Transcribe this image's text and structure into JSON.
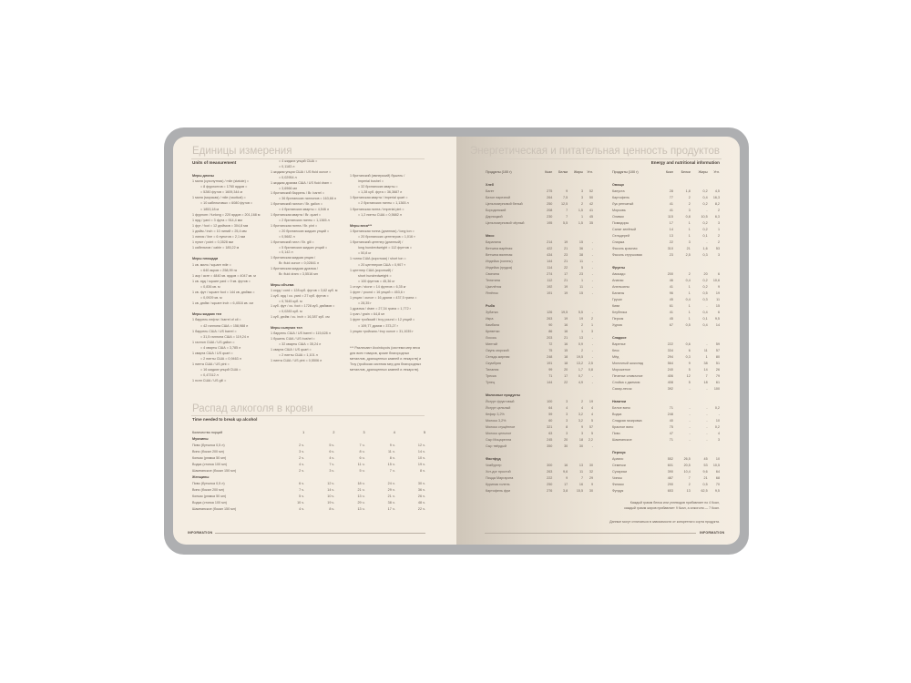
{
  "left_page": {
    "units_title": "Единицы измерения",
    "units_subtitle": "Units of measurement",
    "units_columns": [
      [
        {
          "h": "Меры длины"
        },
        "1 миля (сухопутная) / mile (statute) =",
        {
          "i": "= 8 фурлонгов = 1760 ярдов ="
        },
        {
          "i": "= 5280 футов = 1609,344 м"
        },
        "1 миля (морская) / mile (nautical) =",
        {
          "i": "= 10 кабельтовых = 6080 футов ="
        },
        {
          "i": "= 1853,18 м"
        },
        "1 фурлонг / furlong = 220 ярдов = 201,168 м",
        "1 ярд / yard = 3 фута = 914,4 мм",
        "1 фут / foot = 12 дюймов = 304,8 мм",
        "1 дюйм / inch = 10 линий = 25,4 мм",
        "1 линия / line = 6 пунктов = 2,1 мм",
        "1 пункт / point = 0,3528 мм",
        "1 кабельтов / cable = 185,22 м",
        "",
        {
          "h": "Меры площади"
        },
        "1 кв. миля / square mile =",
        {
          "i": "= 640 акров = 258,99 га"
        },
        "1 акр / acre = 4840 кв. ярдов = 4047 кв. м",
        "1 кв. ярд / square yard = 9 кв. футов =",
        {
          "i": "= 0,836 кв. м"
        },
        "1 кв. фут / square foot = 144 кв. дюйма =",
        {
          "i": "= 0,0929 кв. м"
        },
        "1 кв. дюйм / square inch = 6,4516 кв. см",
        "",
        {
          "h": "Меры жидких тел"
        },
        "1 баррель нефти / barrel of oil =",
        {
          "i": "= 42 галлона США = 158,988 л"
        },
        "1 баррель США / US barrel =",
        {
          "i": "= 31,5 галлона США = 119,24 л"
        },
        "1 галлон США / US gallon =",
        {
          "i": "= 4 кварты США = 3,785 л"
        },
        "1 кварта США / US quart =",
        {
          "i": "= 2 пинты США = 0,9463 л"
        },
        "1 пинта США / US pint =",
        {
          "i": "= 16 жидких унций США ="
        },
        {
          "i": "= 0,47312 л"
        },
        "1 гилл США / US gill ="
      ],
      [
        {
          "i": "= 4 жидких унций США ="
        },
        {
          "i": "= 0,1183 л"
        },
        "1 жидкая унция США / US fluid ounce =",
        {
          "i": "= 0,02954 л"
        },
        "1 жидкая драхма США / US fluid dram =",
        {
          "i": "= 3,6966 мл"
        },
        "1 британский баррель / Br. barrel =",
        {
          "i": "= 36 британских галлонов = 163,66 л"
        },
        "1 британский галлон / Br. gallon =",
        {
          "i": "= 4 британских кварты = 4,546 л"
        },
        "1 британская кварта / Br. quart =",
        {
          "i": "= 2 британских пинты = 1,1365 л"
        },
        "1 британская пинта / Br. pint =",
        {
          "i": "= 20 британских жидких унций ="
        },
        {
          "i": "= 0,5682 л"
        },
        "1 британский гилл / Br. gill =",
        {
          "i": "= 5 британских жидких унций ="
        },
        {
          "i": "= 0,142 л"
        },
        "1 британская жидкая унция /",
        {
          "i": "Br. fluid ounce = 0,02841 л"
        },
        "1 британская жидкая драхма /",
        {
          "i": "Br. fluid dram = 3,5516 мл"
        },
        "",
        {
          "h": "Меры объема"
        },
        "1 корд / cord = 128 куб. футов = 3,62 куб. м",
        "1 куб. ярд / cu. yard = 27 куб. футов =",
        {
          "i": "= 0,7645 куб. м"
        },
        "1 куб. фут / cu. foot = 1728 куб. дюймов =",
        {
          "i": "= 0,0283 куб. м"
        },
        "1 куб. дюйм / cu. inch = 16,387 куб. см",
        "",
        {
          "h": "Меры сыпучих тел"
        },
        "1 баррель США / US barrel = 115,628 л",
        "1 бушель США / US bushel =",
        {
          "i": "= 32 кварты США = 35,24 л"
        },
        "1 кварта США / US quart =",
        {
          "i": "= 2 пинты США = 1,101 л"
        },
        "1 пинта США / US pint = 0,5506 л"
      ],
      [
        "1 британский (имперский) бушель /",
        {
          "i": "imperial bushel ="
        },
        {
          "i": "= 32 британских кварты ="
        },
        {
          "i": "= 1,28 куб. фута = 36,3687 л"
        },
        "1 британская кварта / imperial quart =",
        {
          "i": "= 2 британских пинты = 1,1365 л"
        },
        "1 британская пинта / imperial pint =",
        {
          "i": "= 1,2 пинты США = 0,5682 л"
        },
        "",
        {
          "h": "Меры веса***"
        },
        "1 британская тонна (длинная) / long ton =",
        {
          "i": "= 20 британских центнеров = 1,016 т"
        },
        "1 британский центнер (длинный) /",
        {
          "i": "long hundredweight = 112 фунтов ="
        },
        {
          "i": "= 50,8 кг"
        },
        "1 тонна США (короткая) / short ton =",
        {
          "i": "= 20 центнеров США = 0,907 т"
        },
        "1 центнер США (короткий) /",
        {
          "i": "short hundredweight ="
        },
        {
          "i": "= 100 фунтов = 45,36 кг"
        },
        "1 стоун / stone = 14 фунтов = 6,35 кг",
        "1 фунт / pound = 16 унций = 453,6 г",
        "1 унция / ounce = 16 драхм = 437,5 грана =",
        {
          "i": "= 28,35 г"
        },
        "1 драхма / dram = 27,34 грана = 1,772 г",
        "1 гран / grain = 64,8 мг",
        "1 фунт тройский / troy pound = 12 унций =",
        {
          "i": "= 109,77 драхм = 373,27 г"
        },
        "1 унция тройская / troy ounce = 31,1035 г",
        "",
        "",
        {
          "n": "*** Различают Avoirdupois (система мер веса для всех товаров, кроме благородных металлов, драгоценных камней и лекарств) и Troy (тройская система мер для благородных металлов, драгоценных камней и лекарств)."
        }
      ]
    ],
    "alcohol_title": "Распад алкоголя в крови",
    "alcohol_subtitle": "Time needed to break up alcohol",
    "alcohol_header": [
      "Количество порций",
      "1",
      "2",
      "3",
      "4",
      "5"
    ],
    "alcohol_groups": [
      {
        "name": "Мужчины",
        "rows": [
          [
            "Пиво (бутылка 0,5 л)",
            "2 ч.",
            "5 ч.",
            "7 ч.",
            "9 ч.",
            "12 ч."
          ],
          [
            "Вино (бокал 200 мл)",
            "3 ч.",
            "6 ч.",
            "8 ч.",
            "11 ч.",
            "14 ч."
          ],
          [
            "Коньяк (рюмка 50 мл)",
            "2 ч.",
            "4 ч.",
            "6 ч.",
            "8 ч.",
            "10 ч."
          ],
          [
            "Водка (стопка 100 мл)",
            "4 ч.",
            "7 ч.",
            "11 ч.",
            "15 ч.",
            "19 ч."
          ],
          [
            "Шампанское (бокал 150 мл)",
            "2 ч.",
            "3 ч.",
            "5 ч.",
            "7 ч.",
            "8 ч."
          ]
        ]
      },
      {
        "name": "Женщины",
        "rows": [
          [
            "Пиво (бутылка 0,5 л)",
            "6 ч.",
            "12 ч.",
            "18 ч.",
            "24 ч.",
            "30 ч."
          ],
          [
            "Вино (бокал 200 мл)",
            "7 ч.",
            "14 ч.",
            "21 ч.",
            "29 ч.",
            "36 ч."
          ],
          [
            "Коньяк (рюмка 50 мл)",
            "5 ч.",
            "10 ч.",
            "13 ч.",
            "21 ч.",
            "26 ч."
          ],
          [
            "Водка (стопка 100 мл)",
            "10 ч.",
            "19 ч.",
            "29 ч.",
            "38 ч.",
            "48 ч."
          ],
          [
            "Шампанское (бокал 150 мл)",
            "4 ч.",
            "8 ч.",
            "13 ч.",
            "17 ч.",
            "22 ч."
          ]
        ]
      }
    ],
    "footer": "INFORMATION"
  },
  "right_page": {
    "title": "Энергетическая и питательная ценность продуктов",
    "subtitle": "Energy and nutritional information",
    "header": [
      "Продукты (100 г)",
      "Ккал",
      "Белки",
      "Жиры",
      "Угл."
    ],
    "left_table": [
      {
        "name": "Хлеб",
        "rows": [
          [
            "Багет",
            "275",
            "9",
            "3",
            "52"
          ],
          [
            "Батон нарезной",
            "264",
            "7,5",
            "3",
            "50"
          ],
          [
            "Цельнозерновой белый",
            "250",
            "12,5",
            "2",
            "42"
          ],
          [
            "Бородинский",
            "208",
            "7",
            "1,5",
            "41"
          ],
          [
            "Дарницкий",
            "230",
            "7",
            "1",
            "45"
          ],
          [
            "Цельнозерновой чёрный",
            "195",
            "5,5",
            "1,5",
            "35"
          ]
        ]
      },
      {
        "name": "Мясо",
        "rows": [
          [
            "Баранина",
            "214",
            "19",
            "15",
            "-"
          ],
          [
            "Ветчина варёная",
            "422",
            "21",
            "36",
            "-"
          ],
          [
            "Ветчина вяленая",
            "434",
            "23",
            "38",
            "-"
          ],
          [
            "Индейка (голень)",
            "144",
            "21",
            "11",
            "-"
          ],
          [
            "Индейка (грудка)",
            "114",
            "22",
            "5",
            "-"
          ],
          [
            "Свинина",
            "274",
            "17",
            "23",
            "-"
          ],
          [
            "Телятина",
            "112",
            "21",
            "1",
            "-"
          ],
          [
            "Цыплёнок",
            "192",
            "19",
            "11",
            "-"
          ],
          [
            "Ягнёнок",
            "191",
            "19",
            "15",
            "-"
          ]
        ]
      },
      {
        "name": "Рыба",
        "rows": [
          [
            "Зубатка",
            "126",
            "19,5",
            "5,5",
            "-"
          ],
          [
            "Икра",
            "263",
            "19",
            "19",
            "2"
          ],
          [
            "Камбала",
            "90",
            "16",
            "2",
            "1"
          ],
          [
            "Креветки",
            "86",
            "16",
            "1",
            "3"
          ],
          [
            "Лосось",
            "203",
            "21",
            "13",
            "-"
          ],
          [
            "Минтай",
            "72",
            "16",
            "0,9",
            "-"
          ],
          [
            "Окунь морской",
            "75",
            "15",
            "2",
            "-"
          ],
          [
            "Сельдь жирная",
            "248",
            "18",
            "19,5",
            "-"
          ],
          [
            "Скумбрия",
            "191",
            "18",
            "13,2",
            "2,5"
          ],
          [
            "Тилапия",
            "99",
            "20",
            "1,7",
            "0,8"
          ],
          [
            "Треска",
            "71",
            "17",
            "0,7",
            "-"
          ],
          [
            "Тунец",
            "144",
            "22",
            "4,9",
            "-"
          ]
        ]
      },
      {
        "name": "Молочные продукты",
        "rows": [
          [
            "Йогурт фруктовый",
            "100",
            "3",
            "2",
            "19"
          ],
          [
            "Йогурт цельный",
            "64",
            "4",
            "4",
            "4"
          ],
          [
            "Кефир 3,2%",
            "59",
            "3",
            "3,2",
            "4"
          ],
          [
            "Молоко 3,2%",
            "60",
            "3",
            "3,2",
            "5"
          ],
          [
            "Молоко сгущённое",
            "321",
            "8",
            "9",
            "57"
          ],
          [
            "Молоко цельное",
            "63",
            "3",
            "3",
            "5"
          ],
          [
            "Сыр Моцарелла",
            "245",
            "20",
            "18",
            "2,2"
          ],
          [
            "Сыр твёрдый",
            "350",
            "30",
            "30",
            "-"
          ]
        ]
      },
      {
        "name": "Фастфуд",
        "rows": [
          [
            "Чизбургер",
            "300",
            "16",
            "13",
            "30"
          ],
          [
            "Хот-дог простой",
            "263",
            "9,6",
            "11",
            "32"
          ],
          [
            "Пицца Маргарита",
            "222",
            "9",
            "7",
            "29"
          ],
          [
            "Куриная голень",
            "250",
            "17",
            "16",
            "9"
          ],
          [
            "Картофель фри",
            "276",
            "3,8",
            "15,5",
            "30"
          ]
        ]
      }
    ],
    "right_table": [
      {
        "name": "Овощи",
        "rows": [
          [
            "Капуста",
            "28",
            "1,8",
            "0,2",
            "4,5"
          ],
          [
            "Картофель",
            "77",
            "2",
            "0,4",
            "16,3"
          ],
          [
            "Лук репчатый",
            "41",
            "2",
            "0,2",
            "8,2"
          ],
          [
            "Морковь",
            "41",
            "3",
            "-",
            "2"
          ],
          [
            "Оливки",
            "115",
            "0,8",
            "10,5",
            "6,3"
          ],
          [
            "Помидоры",
            "17",
            "1",
            "0,2",
            "3"
          ],
          [
            "Салат зелёный",
            "14",
            "1",
            "0,2",
            "1"
          ],
          [
            "Сельдерей",
            "13",
            "1",
            "0,1",
            "2"
          ],
          [
            "Спаржа",
            "22",
            "3",
            "-",
            "2"
          ],
          [
            "Фасоль красная",
            "310",
            "21",
            "1,6",
            "53"
          ],
          [
            "Фасоль стручковая",
            "23",
            "2,5",
            "0,3",
            "3"
          ]
        ]
      },
      {
        "name": "Фрукты",
        "rows": [
          [
            "Авокадо",
            "200",
            "2",
            "20",
            "6"
          ],
          [
            "Ананас",
            "46",
            "0,4",
            "0,2",
            "10,6"
          ],
          [
            "Апельсины",
            "41",
            "1",
            "0,2",
            "9"
          ],
          [
            "Бананы",
            "96",
            "1",
            "0,5",
            "19"
          ],
          [
            "Груши",
            "45",
            "0,4",
            "0,3",
            "11"
          ],
          [
            "Киви",
            "61",
            "1",
            "-",
            "15"
          ],
          [
            "Клубника",
            "41",
            "1",
            "0,4",
            "6"
          ],
          [
            "Персик",
            "45",
            "1",
            "0,1",
            "9,5"
          ],
          [
            "Хурма",
            "67",
            "0,5",
            "0,4",
            "14"
          ]
        ]
      },
      {
        "name": "Сладкое",
        "rows": [
          [
            "Варенье",
            "222",
            "0,6",
            "-",
            "59"
          ],
          [
            "Кекс",
            "334",
            "6",
            "11",
            "57"
          ],
          [
            "Мёд",
            "294",
            "0,3",
            "1",
            "80"
          ],
          [
            "Молочный шоколад",
            "564",
            "9",
            "38",
            "51"
          ],
          [
            "Мороженое",
            "240",
            "5",
            "14",
            "26"
          ],
          [
            "Печенье сливочное",
            "406",
            "12",
            "7",
            "79"
          ],
          [
            "Слойка с джемом",
            "408",
            "5",
            "18",
            "61"
          ],
          [
            "Сахар-песок",
            "392",
            "-",
            "-",
            "100"
          ]
        ]
      },
      {
        "name": "Напитки",
        "rows": [
          [
            "Белое вино",
            "71",
            "-",
            "-",
            "0,2"
          ],
          [
            "Водка",
            "248",
            "-",
            "-",
            "-"
          ],
          [
            "Сладкая газировка",
            "40",
            "-",
            "-",
            "10"
          ],
          [
            "Красное вино",
            "75",
            "-",
            "-",
            "0,2"
          ],
          [
            "Пиво",
            "47",
            "-",
            "-",
            "4"
          ],
          [
            "Шампанское",
            "71",
            "-",
            "-",
            "3"
          ]
        ]
      },
      {
        "name": "Перекус",
        "rows": [
          [
            "Арахис",
            "552",
            "26,5",
            "45",
            "10"
          ],
          [
            "Семечки",
            "601",
            "20,5",
            "53",
            "10,5"
          ],
          [
            "Сухарики",
            "390",
            "10,4",
            "9,6",
            "64"
          ],
          [
            "Чипсы",
            "487",
            "7",
            "21",
            "68"
          ],
          [
            "Финики",
            "290",
            "2",
            "0,5",
            "70"
          ],
          [
            "Фундук",
            "653",
            "13",
            "62,5",
            "9,5"
          ]
        ]
      }
    ],
    "note_1": "Каждый грамм белка или углеводов прибавляет по 4 Ккал,",
    "note_2": "каждый грамм жиров прибавляет 9 Ккал, а алкоголя — 7 Ккал.",
    "note_3": "Данные могут отличаться в зависимости от конкретного сорта продукта.",
    "footer": "INFORMATION"
  },
  "colors": {
    "frame": "#aeafb1",
    "page": "#f4ede2",
    "title": "#c9c0b5",
    "text": "#6d6259"
  }
}
